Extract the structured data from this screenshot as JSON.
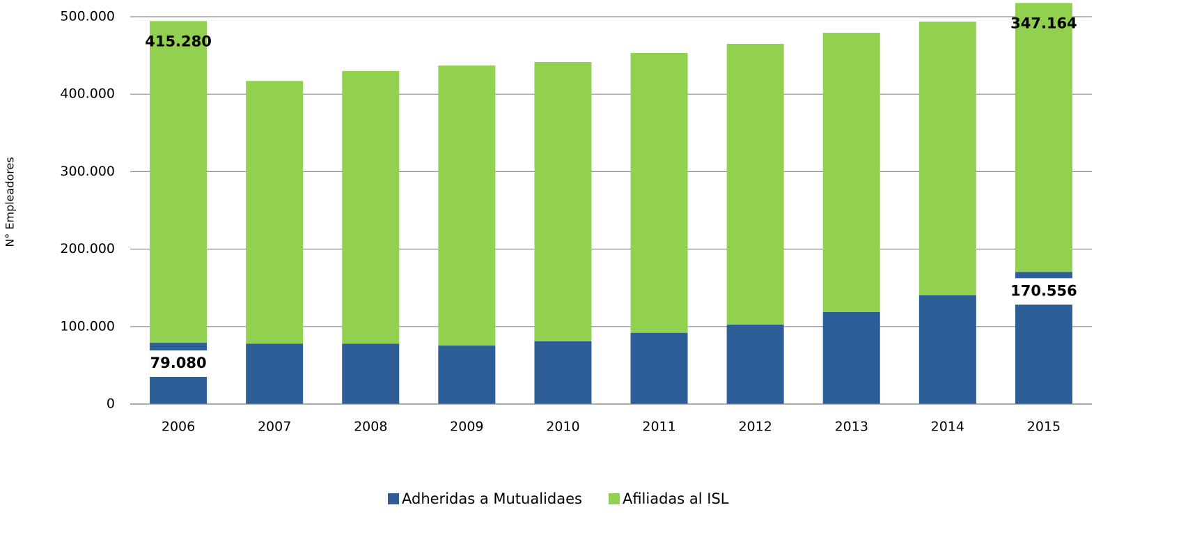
{
  "chart_data": {
    "type": "stacked_bar",
    "y_label": "N° Empleadores",
    "categories": [
      "2006",
      "2007",
      "2008",
      "2009",
      "2010",
      "2011",
      "2012",
      "2013",
      "2014",
      "2015"
    ],
    "series": [
      {
        "name": "Adheridas a Mutualidaes",
        "color": "#2e5e98",
        "values": [
          79080,
          78000,
          78000,
          75500,
          81000,
          92000,
          102500,
          118700,
          140300,
          170556
        ],
        "value_labels": [
          "79.080",
          null,
          null,
          null,
          null,
          null,
          null,
          null,
          null,
          "170.556"
        ]
      },
      {
        "name": "Afiliadas al ISL",
        "color": "#92d050",
        "values": [
          415280,
          339000,
          352000,
          361500,
          360500,
          361200,
          362500,
          360600,
          353400,
          347164
        ],
        "value_labels": [
          "415.280",
          null,
          null,
          null,
          null,
          null,
          null,
          null,
          null,
          "347.164"
        ]
      }
    ],
    "ylim": [
      0,
      500000
    ],
    "yticks": [
      0,
      {
        "value": 100000,
        "label": "100.000"
      },
      {
        "value": 200000,
        "label": "200.000"
      },
      {
        "value": 300000,
        "label": "300.000"
      },
      {
        "value": 400000,
        "label": "400.000"
      },
      {
        "value": 500000,
        "label": "500.000"
      }
    ],
    "grid": true
  }
}
